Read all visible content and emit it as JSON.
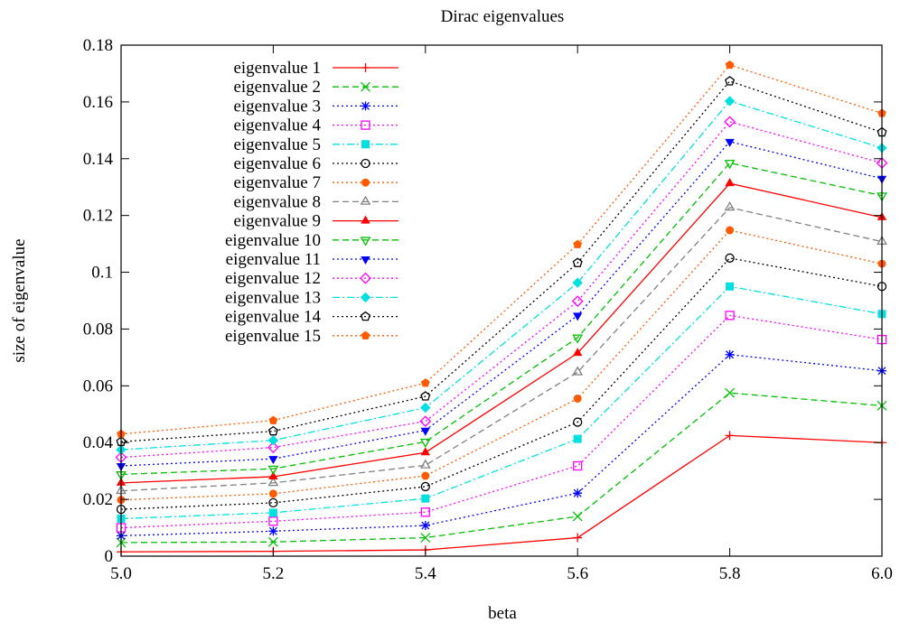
{
  "chart_data": {
    "type": "line",
    "title": "Dirac eigenvalues",
    "xlabel": "beta",
    "ylabel": "size of eigenvalue",
    "xlim": [
      5.0,
      6.0
    ],
    "ylim": [
      0,
      0.18
    ],
    "x": [
      5.0,
      5.2,
      5.4,
      5.6,
      5.8,
      6.0
    ],
    "x_ticks": [
      "5.0",
      "5.2",
      "5.4",
      "5.6",
      "5.8",
      "6.0"
    ],
    "y_ticks": [
      "0",
      "0.02",
      "0.04",
      "0.06",
      "0.08",
      "0.1",
      "0.12",
      "0.14",
      "0.16",
      "0.18"
    ],
    "grid": false,
    "legend_position": "top-left",
    "series": [
      {
        "name": "eigenvalue 1",
        "color": "#ff0000",
        "dash": "solid",
        "marker": "plus",
        "values": [
          0.0015,
          0.0017,
          0.0022,
          0.0065,
          0.0425,
          0.04
        ]
      },
      {
        "name": "eigenvalue 2",
        "color": "#00c000",
        "dash": "dashed",
        "marker": "x",
        "values": [
          0.0048,
          0.005,
          0.0065,
          0.014,
          0.0575,
          0.053
        ]
      },
      {
        "name": "eigenvalue 3",
        "color": "#0000ff",
        "dash": "dotted",
        "marker": "star",
        "values": [
          0.0072,
          0.0088,
          0.0108,
          0.0222,
          0.071,
          0.0653
        ]
      },
      {
        "name": "eigenvalue 4",
        "color": "#ff00ff",
        "dash": "dotted",
        "marker": "open-square",
        "values": [
          0.01,
          0.0123,
          0.0155,
          0.0318,
          0.0848,
          0.0763
        ]
      },
      {
        "name": "eigenvalue 5",
        "color": "#00e0e0",
        "dash": "dashdot",
        "marker": "filled-square",
        "values": [
          0.0132,
          0.0153,
          0.0203,
          0.0413,
          0.095,
          0.0853
        ]
      },
      {
        "name": "eigenvalue 6",
        "color": "#000000",
        "dash": "dotted",
        "marker": "open-circle",
        "values": [
          0.0165,
          0.0188,
          0.0245,
          0.0472,
          0.105,
          0.095
        ]
      },
      {
        "name": "eigenvalue 7",
        "color": "#ff5a00",
        "dash": "dotted",
        "marker": "filled-circle",
        "values": [
          0.0198,
          0.022,
          0.0283,
          0.0555,
          0.1148,
          0.103
        ]
      },
      {
        "name": "eigenvalue 8",
        "color": "#808080",
        "dash": "dashed",
        "marker": "open-triangle",
        "values": [
          0.023,
          0.0258,
          0.032,
          0.0648,
          0.1228,
          0.1108
        ]
      },
      {
        "name": "eigenvalue 9",
        "color": "#ff0000",
        "dash": "solid",
        "marker": "filled-triangle",
        "values": [
          0.0258,
          0.028,
          0.0365,
          0.0715,
          0.1313,
          0.1193
        ]
      },
      {
        "name": "eigenvalue 10",
        "color": "#00c000",
        "dash": "dashed",
        "marker": "open-inv-triangle",
        "values": [
          0.0288,
          0.0308,
          0.0403,
          0.077,
          0.1385,
          0.127
        ]
      },
      {
        "name": "eigenvalue 11",
        "color": "#0000ff",
        "dash": "dotted",
        "marker": "filled-inv-triangle",
        "values": [
          0.0318,
          0.0343,
          0.0443,
          0.0848,
          0.146,
          0.133
        ]
      },
      {
        "name": "eigenvalue 12",
        "color": "#ff00ff",
        "dash": "dotted",
        "marker": "open-diamond",
        "values": [
          0.0348,
          0.0383,
          0.0475,
          0.0898,
          0.153,
          0.1385
        ]
      },
      {
        "name": "eigenvalue 13",
        "color": "#00e0e0",
        "dash": "dashdot",
        "marker": "filled-diamond",
        "values": [
          0.0375,
          0.0408,
          0.0523,
          0.0963,
          0.1603,
          0.1438
        ]
      },
      {
        "name": "eigenvalue 14",
        "color": "#000000",
        "dash": "dotted",
        "marker": "open-pentagon",
        "values": [
          0.0403,
          0.044,
          0.0563,
          0.1033,
          0.1673,
          0.1493
        ]
      },
      {
        "name": "eigenvalue 15",
        "color": "#ff5a00",
        "dash": "dotted",
        "marker": "filled-pentagon",
        "values": [
          0.043,
          0.0478,
          0.061,
          0.1098,
          0.173,
          0.156
        ]
      }
    ]
  }
}
